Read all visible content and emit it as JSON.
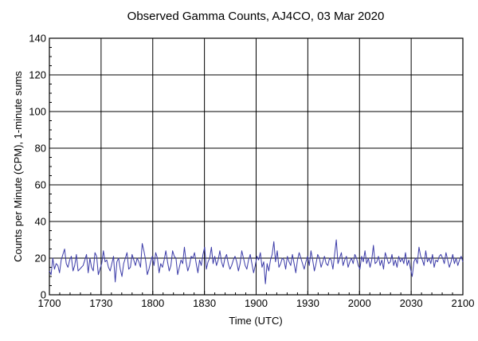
{
  "chart_data": {
    "type": "line",
    "title": "Observed Gamma Counts, AJ4CO, 03 Mar 2020",
    "xlabel": "Time (UTC)",
    "ylabel": "Counts per Minute (CPM), 1-minute sums",
    "x_tick_labels": [
      "1700",
      "1730",
      "1800",
      "1830",
      "1900",
      "1930",
      "2000",
      "2030",
      "2100"
    ],
    "y_tick_labels": [
      "0",
      "20",
      "40",
      "60",
      "80",
      "100",
      "120",
      "140"
    ],
    "xlim_minutes": [
      0,
      240
    ],
    "ylim": [
      0,
      140
    ],
    "grid": true,
    "line_color": "#3b3ba8",
    "series": [
      {
        "values": [
          13,
          11,
          20,
          14,
          17,
          16,
          12,
          19,
          22,
          25,
          17,
          15,
          19,
          21,
          13,
          16,
          22,
          13,
          14,
          15,
          16,
          19,
          22,
          12,
          20,
          15,
          13,
          23,
          21,
          11,
          14,
          17,
          24,
          18,
          19,
          15,
          13,
          17,
          21,
          16,
          18,
          20,
          14,
          10,
          17,
          20,
          23,
          14,
          15,
          22,
          19,
          16,
          20,
          18,
          15,
          21,
          24,
          19,
          11,
          14,
          18,
          21,
          16,
          23,
          20,
          12,
          17,
          15,
          19,
          24,
          18,
          13,
          16,
          22,
          21,
          20,
          11,
          15,
          19,
          17,
          26,
          18,
          13,
          16,
          21,
          20,
          23,
          17,
          12,
          19,
          16,
          22,
          26,
          14,
          18,
          20,
          15,
          17,
          21,
          16,
          19,
          24,
          18,
          15,
          20,
          22,
          17,
          14,
          16,
          19,
          21,
          18,
          13,
          17,
          24,
          20,
          16,
          14,
          19,
          22,
          17,
          12,
          16,
          21,
          19,
          23,
          15,
          18,
          20,
          17,
          13,
          19,
          22,
          16,
          18,
          24,
          15,
          17,
          20,
          19,
          14,
          21,
          18,
          16,
          22,
          17,
          15,
          19,
          23,
          20,
          17,
          14,
          18,
          21,
          16,
          24,
          19,
          13,
          17,
          22,
          20,
          15,
          18,
          21,
          17,
          16,
          20,
          19,
          14,
          22,
          18,
          17,
          20,
          23,
          16,
          19,
          21,
          15,
          18,
          20,
          17,
          22,
          19,
          16,
          14,
          21,
          18,
          24,
          17,
          20,
          15,
          19,
          22,
          17,
          18,
          21,
          16,
          19,
          14,
          23,
          20,
          17,
          18,
          22,
          16,
          19,
          15,
          21,
          18,
          20,
          17,
          23,
          16,
          19,
          14,
          22,
          18,
          20,
          17,
          15,
          21,
          19,
          16,
          24,
          18,
          20,
          17,
          22,
          15,
          19,
          18,
          21,
          16,
          20,
          17,
          23,
          19,
          15,
          18,
          22,
          17,
          20,
          16,
          19,
          21,
          18
        ],
        "spikes": [
          [
            39,
            7
          ],
          [
            55,
            28
          ],
          [
            73,
            24
          ],
          [
            96,
            26
          ],
          [
            128,
            6
          ],
          [
            133,
            29
          ],
          [
            146,
            12
          ],
          [
            170,
            11
          ],
          [
            170,
            30
          ],
          [
            182,
            20
          ],
          [
            192,
            27
          ],
          [
            215,
            10
          ],
          [
            219,
            26
          ],
          [
            232,
            22
          ]
        ]
      }
    ]
  }
}
